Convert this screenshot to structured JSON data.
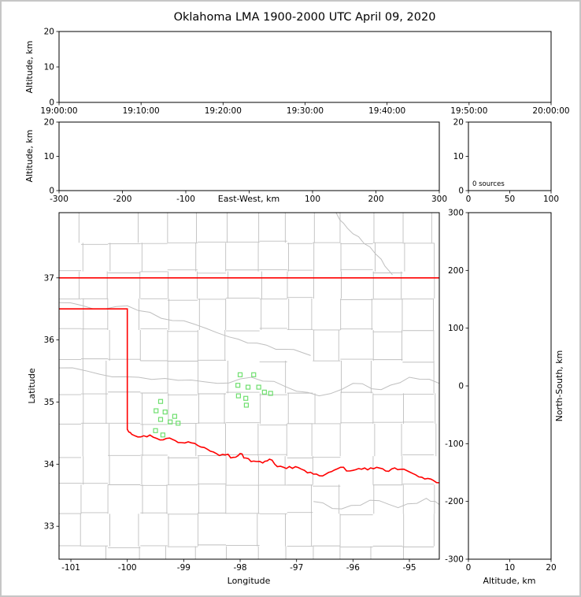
{
  "chart_data": {
    "type": "scatter",
    "description": "XLMA-style multi-panel lightning mapping array display. All VHF source panels are empty (0 sources). Plan view shows Oklahoma state/county map with LMA station locations as green squares.",
    "title": "Oklahoma LMA 1900-2000 UTC April 09, 2020",
    "colors": {
      "figure_border": "#c6c6c6",
      "axis": "#000000",
      "county": "#bfbfbf",
      "river": "#bfbfbf",
      "state_border": "#ff0000",
      "station": "#6fdf6f"
    },
    "panels": {
      "time_height": {
        "ylabel": "Altitude, km",
        "yticks": [
          0,
          10,
          20
        ],
        "ylim": [
          0,
          20
        ],
        "xlim": [
          0,
          6
        ],
        "xticks": [
          0,
          1,
          2,
          3,
          4,
          5,
          6
        ],
        "xtick_labels": [
          "19:00:00",
          "19:10:00",
          "19:20:00",
          "19:30:00",
          "19:40:00",
          "19:50:00",
          "20:00:00"
        ],
        "points": []
      },
      "ew_height": {
        "xlabel": "East-West, km",
        "xlim": [
          -300,
          300
        ],
        "xticks": [
          -300,
          -200,
          -100,
          0,
          100,
          200,
          300
        ],
        "xtick_labels": [
          "-300",
          "-200",
          "-100",
          "",
          "100",
          "200",
          "300"
        ],
        "ylabel": "Altitude, km",
        "yticks": [
          0,
          10,
          20
        ],
        "ylim": [
          0,
          20
        ],
        "points": []
      },
      "source_histogram": {
        "xlim": [
          0,
          100
        ],
        "xticks": [
          0,
          50,
          100
        ],
        "xtick_labels": [
          "0",
          "50",
          "100"
        ],
        "ylim": [
          0,
          20
        ],
        "yticks": [
          0,
          10,
          20
        ],
        "annotation": "0 sources",
        "source_count": 0
      },
      "plan_view": {
        "xlabel": "Longitude",
        "ylabel": "Latitude",
        "xlim": [
          -101.21,
          -94.47
        ],
        "ylim": [
          32.47,
          38.05
        ],
        "xticks": [
          -101,
          -100,
          -99,
          -98,
          -97,
          -96,
          -95
        ],
        "xtick_labels": [
          "-101",
          "-100",
          "-99",
          "-98",
          "-97",
          "-96",
          "-95"
        ],
        "yticks": [
          33,
          34,
          35,
          36,
          37
        ],
        "stations": [
          [
            -98.0,
            35.44
          ],
          [
            -97.76,
            35.44
          ],
          [
            -98.04,
            35.27
          ],
          [
            -97.86,
            35.24
          ],
          [
            -97.67,
            35.24
          ],
          [
            -97.57,
            35.16
          ],
          [
            -98.03,
            35.1
          ],
          [
            -97.9,
            35.06
          ],
          [
            -97.46,
            35.14
          ],
          [
            -97.89,
            34.95
          ],
          [
            -99.41,
            35.01
          ],
          [
            -99.49,
            34.86
          ],
          [
            -99.33,
            34.84
          ],
          [
            -99.16,
            34.77
          ],
          [
            -99.41,
            34.72
          ],
          [
            -99.24,
            34.68
          ],
          [
            -99.1,
            34.66
          ],
          [
            -99.5,
            34.54
          ],
          [
            -99.37,
            34.47
          ]
        ],
        "points": []
      },
      "ns_height": {
        "xlabel": "Altitude, km",
        "xlim": [
          0,
          20
        ],
        "xticks": [
          0,
          10,
          20
        ],
        "xtick_labels": [
          "0",
          "10",
          "20"
        ],
        "ylabel": "North-South, km",
        "ylim": [
          -300,
          300
        ],
        "yticks": [
          -300,
          -200,
          -100,
          0,
          100,
          200,
          300
        ],
        "points": []
      }
    },
    "map_layers": {
      "state_border": {
        "north": [
          [
            -101.21,
            37.0
          ],
          [
            -94.47,
            37.0
          ]
        ],
        "main": [
          [
            -101.21,
            36.5
          ],
          [
            -100.0,
            36.5
          ],
          [
            -100.0,
            34.56
          ],
          [
            -99.92,
            34.48
          ],
          [
            -99.76,
            34.44
          ],
          [
            -99.6,
            34.47
          ],
          [
            -99.42,
            34.39
          ],
          [
            -99.25,
            34.42
          ],
          [
            -99.1,
            34.35
          ],
          [
            -98.92,
            34.36
          ],
          [
            -98.75,
            34.3
          ],
          [
            -98.58,
            34.24
          ],
          [
            -98.42,
            34.17
          ],
          [
            -98.26,
            34.15
          ],
          [
            -98.12,
            34.11
          ],
          [
            -98.0,
            34.17
          ],
          [
            -97.9,
            34.1
          ],
          [
            -97.76,
            34.05
          ],
          [
            -97.6,
            34.02
          ],
          [
            -97.48,
            34.08
          ],
          [
            -97.34,
            33.96
          ],
          [
            -97.18,
            33.93
          ],
          [
            -97.02,
            33.96
          ],
          [
            -96.86,
            33.9
          ],
          [
            -96.7,
            33.84
          ],
          [
            -96.54,
            33.81
          ],
          [
            -96.38,
            33.88
          ],
          [
            -96.22,
            33.95
          ],
          [
            -96.06,
            33.89
          ],
          [
            -95.9,
            33.93
          ],
          [
            -95.74,
            33.91
          ],
          [
            -95.58,
            33.95
          ],
          [
            -95.42,
            33.89
          ],
          [
            -95.26,
            33.94
          ],
          [
            -95.1,
            33.92
          ],
          [
            -94.94,
            33.85
          ],
          [
            -94.78,
            33.79
          ],
          [
            -94.62,
            33.76
          ],
          [
            -94.47,
            33.7
          ]
        ]
      },
      "rivers": [
        [
          [
            -96.3,
            38.05
          ],
          [
            -96.1,
            37.8
          ],
          [
            -95.8,
            37.55
          ],
          [
            -95.5,
            37.3
          ],
          [
            -95.3,
            37.05
          ]
        ],
        [
          [
            -101.21,
            36.6
          ],
          [
            -100.6,
            36.5
          ],
          [
            -100.0,
            36.55
          ],
          [
            -99.4,
            36.35
          ],
          [
            -98.8,
            36.25
          ],
          [
            -98.2,
            36.05
          ],
          [
            -97.7,
            35.95
          ],
          [
            -97.2,
            35.85
          ],
          [
            -96.75,
            35.75
          ]
        ],
        [
          [
            -101.21,
            35.55
          ],
          [
            -100.5,
            35.45
          ],
          [
            -99.8,
            35.4
          ],
          [
            -99.1,
            35.35
          ],
          [
            -98.4,
            35.3
          ],
          [
            -97.8,
            35.4
          ],
          [
            -97.2,
            35.25
          ],
          [
            -96.6,
            35.1
          ],
          [
            -96.0,
            35.3
          ],
          [
            -95.5,
            35.2
          ],
          [
            -95.0,
            35.4
          ],
          [
            -94.47,
            35.3
          ]
        ],
        [
          [
            -96.7,
            33.4
          ],
          [
            -96.2,
            33.28
          ],
          [
            -95.7,
            33.42
          ],
          [
            -95.2,
            33.3
          ],
          [
            -94.7,
            33.45
          ],
          [
            -94.47,
            33.35
          ]
        ]
      ]
    }
  }
}
